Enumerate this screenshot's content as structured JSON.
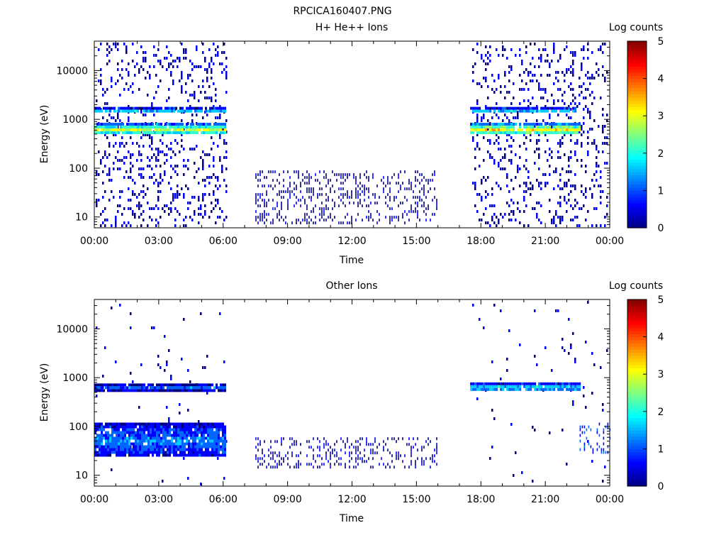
{
  "figure_title": "RPCICA160407.PNG",
  "colormap": [
    "#00007f",
    "#0000ff",
    "#0066ff",
    "#00ccff",
    "#33ffcc",
    "#99ff66",
    "#ffff00",
    "#ff9900",
    "#ff3300",
    "#cc0000",
    "#7f0000"
  ],
  "chart_data": [
    {
      "type": "heatmap",
      "title": "H+ He++ Ions",
      "xlabel": "Time",
      "ylabel": "Energy (eV)",
      "x_tick_labels": [
        "00:00",
        "03:00",
        "06:00",
        "09:00",
        "12:00",
        "15:00",
        "18:00",
        "21:00",
        "00:00"
      ],
      "x_range_hours": [
        0,
        24
      ],
      "y_scale": "log",
      "y_range_eV": [
        6,
        40000
      ],
      "y_tick_labels": [
        "10",
        "100",
        "1000",
        "10000"
      ],
      "y_tick_values": [
        10,
        100,
        1000,
        10000
      ],
      "colorbar": {
        "label": "Log counts",
        "range": [
          0,
          5
        ],
        "tick_labels": [
          "0",
          "1",
          "2",
          "3",
          "4",
          "5"
        ]
      },
      "data_gaps_hours": [
        [
          6.15,
          7.5
        ],
        [
          16.0,
          17.5
        ]
      ],
      "features": [
        {
          "name": "main band",
          "t_start": 0,
          "t_end": 6.1,
          "e_low": 500,
          "e_high": 850,
          "level": 3.0
        },
        {
          "name": "upper band",
          "t_start": 0,
          "t_end": 6.1,
          "e_low": 1400,
          "e_high": 1800,
          "level": 1.8
        },
        {
          "name": "main band",
          "t_start": 17.5,
          "t_end": 22.6,
          "e_low": 500,
          "e_high": 850,
          "level": 3.3
        },
        {
          "name": "upper band",
          "t_start": 17.5,
          "t_end": 22.4,
          "e_low": 1400,
          "e_high": 1800,
          "level": 1.8
        },
        {
          "name": "low-energy scatter",
          "t_start": 7.5,
          "t_end": 16.0,
          "e_low": 8,
          "e_high": 90,
          "level": 0.3
        }
      ]
    },
    {
      "type": "heatmap",
      "title": "Other Ions",
      "xlabel": "Time",
      "ylabel": "Energy (eV)",
      "x_tick_labels": [
        "00:00",
        "03:00",
        "06:00",
        "09:00",
        "12:00",
        "15:00",
        "18:00",
        "21:00",
        "00:00"
      ],
      "x_range_hours": [
        0,
        24
      ],
      "y_scale": "log",
      "y_range_eV": [
        6,
        40000
      ],
      "y_tick_labels": [
        "10",
        "100",
        "1000",
        "10000"
      ],
      "y_tick_values": [
        10,
        100,
        1000,
        10000
      ],
      "colorbar": {
        "label": "Log counts",
        "range": [
          0,
          5
        ],
        "tick_labels": [
          "0",
          "1",
          "2",
          "3",
          "4",
          "5"
        ]
      },
      "data_gaps_hours": [
        [
          6.15,
          7.5
        ],
        [
          16.0,
          17.5
        ]
      ],
      "features": [
        {
          "name": "main band",
          "t_start": 0,
          "t_end": 6.1,
          "e_low": 580,
          "e_high": 760,
          "level": 1.2
        },
        {
          "name": "main band",
          "t_start": 17.5,
          "t_end": 22.6,
          "e_low": 560,
          "e_high": 800,
          "level": 2.0
        },
        {
          "name": "low-energy band",
          "t_start": 0,
          "t_end": 6.1,
          "e_low": 25,
          "e_high": 120,
          "level": 1.4
        },
        {
          "name": "low-energy scatter",
          "t_start": 7.5,
          "t_end": 16.0,
          "e_low": 15,
          "e_high": 60,
          "level": 0.5
        },
        {
          "name": "low-energy scatter",
          "t_start": 22.6,
          "t_end": 24,
          "e_low": 30,
          "e_high": 120,
          "level": 1.0
        }
      ]
    }
  ]
}
